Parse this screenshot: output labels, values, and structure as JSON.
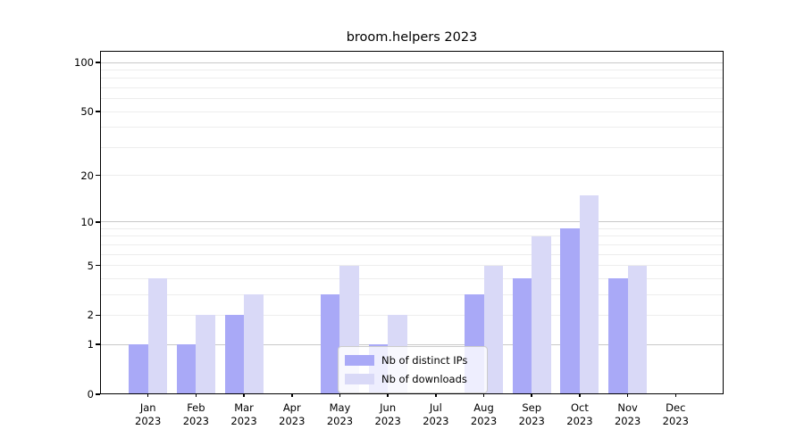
{
  "chart": {
    "title": "broom.helpers 2023"
  },
  "chart_data": {
    "type": "bar",
    "title": "broom.helpers 2023",
    "categories": [
      "Jan",
      "Feb",
      "Mar",
      "Apr",
      "May",
      "Jun",
      "Jul",
      "Aug",
      "Sep",
      "Oct",
      "Nov",
      "Dec"
    ],
    "year_label": "2023",
    "series": [
      {
        "name": "Nb of distinct IPs",
        "color": "#a9a9f7",
        "values": [
          1,
          1,
          2,
          0,
          3,
          1,
          0,
          3,
          4,
          9,
          4,
          0
        ]
      },
      {
        "name": "Nb of downloads",
        "color": "#d9d9f7",
        "values": [
          4,
          2,
          3,
          0,
          5,
          2,
          0,
          5,
          8,
          15,
          5,
          0
        ]
      }
    ],
    "xlabel": "",
    "ylabel": "",
    "yscale": "log1p",
    "ylim": [
      0,
      113
    ],
    "yticks": [
      100,
      50,
      20,
      10,
      5,
      2,
      1,
      0
    ],
    "major_gridlines": [
      1,
      10,
      100
    ],
    "minor_gridlines": [
      2,
      3,
      4,
      5,
      6,
      7,
      8,
      9,
      20,
      30,
      40,
      50,
      60,
      70,
      80,
      90
    ],
    "grid": true,
    "legend_position": "lower center",
    "colors": {
      "major_grid": "#c9c9c9",
      "minor_grid": "#ededed",
      "axis": "#000000"
    }
  }
}
